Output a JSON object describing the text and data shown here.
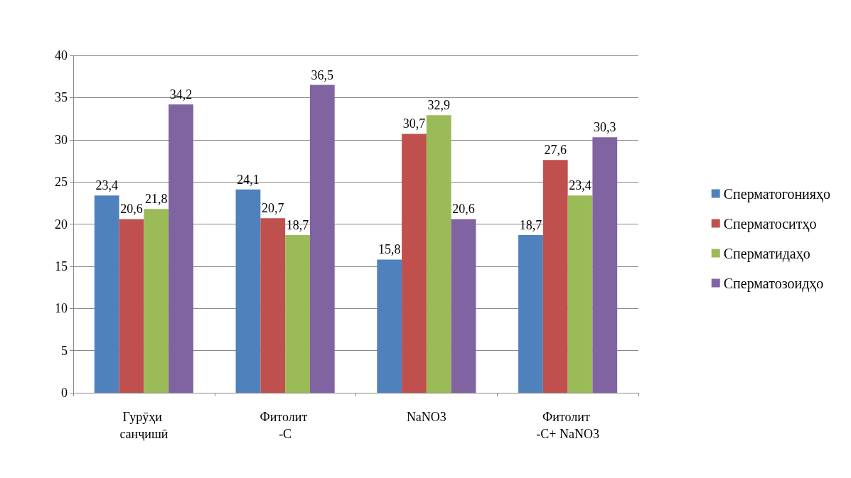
{
  "chart_data": {
    "type": "bar",
    "categories": [
      "Гурӯҳи санҷишӣ",
      "Фитолит -С",
      "NaNO3",
      "Фитолит -С+ NaNO3"
    ],
    "series": [
      {
        "name": "Сперматогонияҳо",
        "color": "#4f81bd",
        "values": [
          23.4,
          24.1,
          15.8,
          18.7
        ],
        "value_labels": [
          "23,4",
          "24,1",
          "15,8",
          "18,7"
        ]
      },
      {
        "name": "Сперматоситҳо",
        "color": "#c0504d",
        "values": [
          20.6,
          20.7,
          30.7,
          27.6
        ],
        "value_labels": [
          "20,6",
          "20,7",
          "30,7",
          "27,6"
        ]
      },
      {
        "name": "Сперматидаҳо",
        "color": "#9bbb59",
        "values": [
          21.8,
          18.7,
          32.9,
          23.4
        ],
        "value_labels": [
          "21,8",
          "18,7",
          "32,9",
          "23,4"
        ]
      },
      {
        "name": "Сперматозоидҳо",
        "color": "#8064a2",
        "values": [
          34.2,
          36.5,
          20.6,
          30.3
        ],
        "value_labels": [
          "34,2",
          "36,5",
          "20,6",
          "30,3"
        ]
      }
    ],
    "ylim": [
      0,
      40
    ],
    "yticks": [
      0,
      5,
      10,
      15,
      20,
      25,
      30,
      35,
      40
    ],
    "grid": "y",
    "legend": "right"
  }
}
